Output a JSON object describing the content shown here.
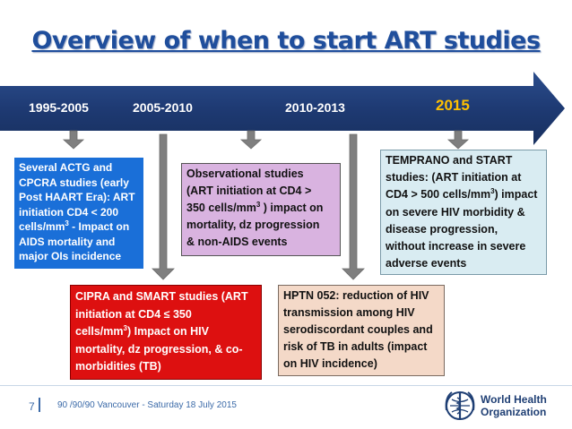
{
  "slide": {
    "title": "Overview of when to start ART studies",
    "periods": [
      "1995-2005",
      "2005-2010",
      "2010-2013",
      "2015"
    ],
    "box_actg": {
      "l1": "Several ACTG and",
      "l2": "CPCRA studies (early",
      "l3": "Post HAART Era):  ART",
      "l4": "initiation  CD4  < 200",
      "l5a": "cells/mm",
      "l5sup": "3",
      "l5b": "  - Impact on",
      "l6": "AIDS mortality and",
      "l7": "major OIs incidence"
    },
    "box_obs": {
      "l1": "Observational studies",
      "l2": "(ART initiation at CD4 >",
      "l3a": "350 cells/mm",
      "l3sup": "3",
      "l3b": " ) impact on",
      "l4": "mortality, dz progression",
      "l5": "& non-AIDS events"
    },
    "box_cipra": {
      "l1": "CIPRA and SMART studies (ART",
      "l2": "initiation at CD4 ≤ 350",
      "l3a": "cells/mm",
      "l3sup": "3",
      "l3b": ") Impact on HIV",
      "l4": "mortality, dz progression, & co-",
      "l5": "morbidities (TB)"
    },
    "box_hptn": {
      "l1": "HPTN 052:  reduction of HIV",
      "l2": "transmission among  HIV",
      "l3": "serodiscordant couples and",
      "l4": "risk of TB in adults (impact",
      "l5": "on HIV incidence)"
    },
    "box_temprano": {
      "l1": "TEMPRANO and START",
      "l2": "studies: (ART initiation at",
      "l3a": "CD4 > 500 cells/mm",
      "l3sup": "3",
      "l3b": ") impact",
      "l4": "on severe HIV morbidity &",
      "l5": "disease progression,",
      "l6": "without increase in severe",
      "l7": "adverse events"
    }
  },
  "footer": {
    "page_number": "7",
    "text": "90 /90/90  Vancouver  - Saturday  18 July 2015",
    "who_line1": "World Health",
    "who_line2": "Organization"
  },
  "colors": {
    "title": "#1f4e9c",
    "arrow": "#1e3a73",
    "highlight_year": "#ffc000",
    "actg_box": "#1a6fd8",
    "obs_box": "#d9b3e0",
    "cipra_box": "#dd1010",
    "hptn_box": "#f4d9c8",
    "temprano_box": "#d9ecf2"
  }
}
